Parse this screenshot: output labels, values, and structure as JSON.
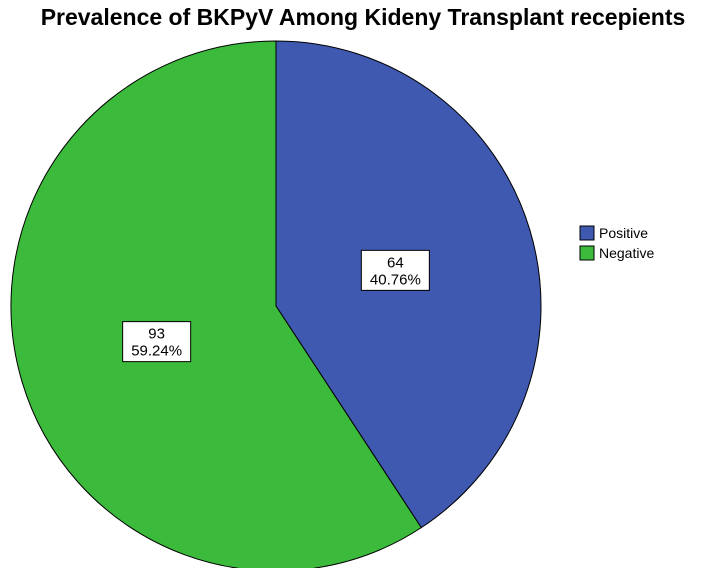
{
  "chart_data": {
    "type": "pie",
    "title": "Prevalence of BKPyV Among Kideny Transplant recepients",
    "slices": [
      {
        "name": "Positive",
        "value": 64,
        "percent_label": "40.76%",
        "color": "#3f58b0"
      },
      {
        "name": "Negative",
        "value": 93,
        "percent_label": "59.24%",
        "color": "#3cba3c"
      }
    ],
    "legend_placement": "right"
  }
}
